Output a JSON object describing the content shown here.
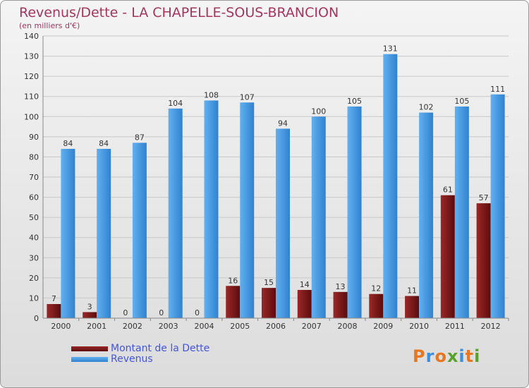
{
  "header": {
    "title": "Revenus/Dette - LA CHAPELLE-SOUS-BRANCION",
    "subtitle": "(en milliers d'€)"
  },
  "logo": {
    "text": "Proxiti"
  },
  "colors": {
    "dette": "#7a1a1a",
    "revenus": "#3d8fdb"
  },
  "chart_data": {
    "type": "bar",
    "categories": [
      "2000",
      "2001",
      "2002",
      "2003",
      "2004",
      "2005",
      "2006",
      "2007",
      "2008",
      "2009",
      "2010",
      "2011",
      "2012"
    ],
    "series": [
      {
        "name": "Montant de la Dette",
        "values": [
          7,
          3,
          0,
          0,
          0,
          16,
          15,
          14,
          13,
          12,
          11,
          61,
          57
        ]
      },
      {
        "name": "Revenus",
        "values": [
          84,
          84,
          87,
          104,
          108,
          107,
          94,
          100,
          105,
          131,
          102,
          105,
          111
        ]
      }
    ],
    "ylim": [
      0,
      140
    ],
    "yticks": [
      0,
      10,
      20,
      30,
      40,
      50,
      60,
      70,
      80,
      90,
      100,
      110,
      120,
      130,
      140
    ],
    "grid": true,
    "legend": "bottom-left"
  }
}
